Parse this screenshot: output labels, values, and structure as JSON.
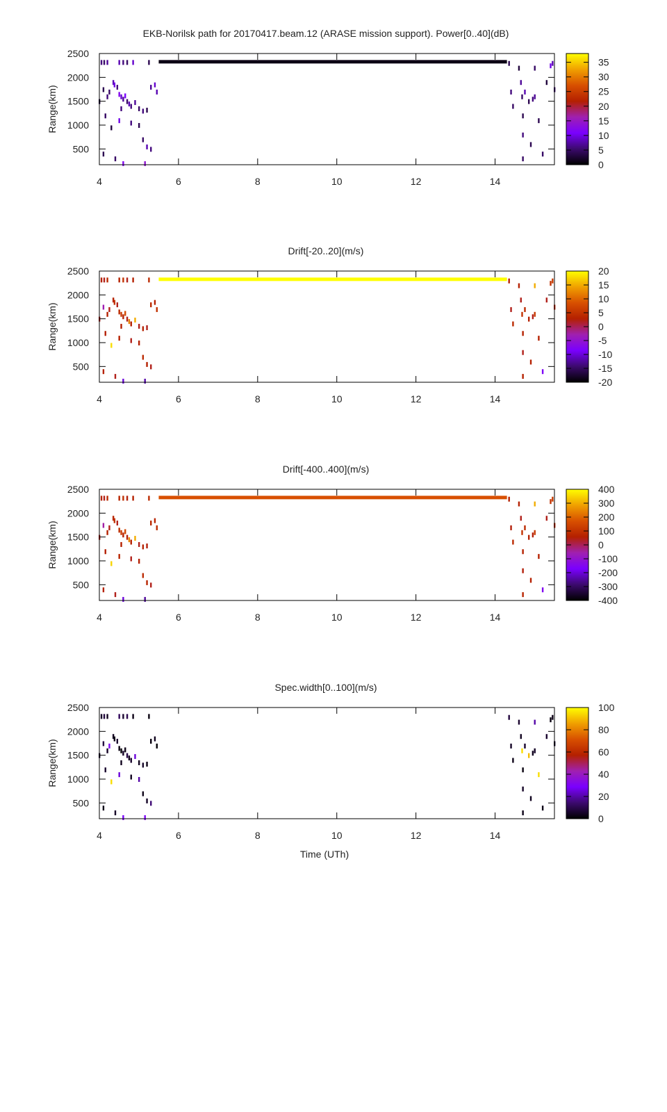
{
  "chart_data": {
    "type": "heatmap",
    "title": "EKB-Norilsk path for 20170417.beam.12 (ARASE mission support). Power[0..40](dB)",
    "xlabel": "Time (UTh)",
    "ylabel": "Range(km)",
    "xlim": [
      4,
      15.5
    ],
    "ylim": [
      170,
      2500
    ],
    "xticks": [
      4,
      6,
      8,
      10,
      12,
      14
    ],
    "yticks": [
      500,
      1000,
      1500,
      2000,
      2500
    ],
    "palette": [
      "#000000",
      "#3c0a6e",
      "#7a00ff",
      "#a020b0",
      "#b42000",
      "#d85000",
      "#f0a000",
      "#ffff00"
    ],
    "echo_columns": [
      "time_h",
      "range_km",
      "power_db",
      "drift_20",
      "drift_400",
      "spec_width"
    ],
    "panels": [
      {
        "title": "EKB-Norilsk path for 20170417.beam.12 (ARASE mission support). Power[0..40](dB)",
        "column": 2,
        "cbrange": [
          0,
          38
        ],
        "cbticks": [
          "0",
          "5",
          "10",
          "15",
          "20",
          "25",
          "30",
          "35"
        ],
        "cbtick_values": [
          0,
          5,
          10,
          15,
          20,
          25,
          30,
          35
        ],
        "band_value": 1
      },
      {
        "title": "Drift[-20..20](m/s)",
        "column": 3,
        "cbrange": [
          -20,
          20
        ],
        "cbticks": [
          "-20",
          "-15",
          "-10",
          "-5",
          "0",
          "5",
          "10",
          "15",
          "20"
        ],
        "cbtick_values": [
          -20,
          -15,
          -10,
          -5,
          0,
          5,
          10,
          15,
          20
        ],
        "band_value": 20
      },
      {
        "title": "Drift[-400..400](m/s)",
        "column": 4,
        "cbrange": [
          -400,
          400
        ],
        "cbticks": [
          "-400",
          "-300",
          "-200",
          "-100",
          "0",
          "100",
          "200",
          "300",
          "400"
        ],
        "cbtick_values": [
          -400,
          -300,
          -200,
          -100,
          0,
          100,
          200,
          300,
          400
        ],
        "band_value": 170
      },
      {
        "title": "Spec.width[0..100](m/s)",
        "column": 5,
        "cbrange": [
          0,
          100
        ],
        "cbticks": [
          "0",
          "20",
          "40",
          "60",
          "80",
          "100"
        ],
        "cbtick_values": [
          0,
          20,
          40,
          60,
          80,
          100
        ],
        "band_value": null
      }
    ],
    "band": {
      "t_start": 5.5,
      "t_end": 14.3,
      "range_km": 2320
    },
    "echoes": [
      [
        4.05,
        2320,
        6,
        3,
        60,
        5
      ],
      [
        4.12,
        2320,
        5,
        2,
        40,
        8
      ],
      [
        4.2,
        2320,
        7,
        4,
        80,
        4
      ],
      [
        4.5,
        2320,
        8,
        3,
        70,
        12
      ],
      [
        4.6,
        2320,
        6,
        5,
        90,
        6
      ],
      [
        4.7,
        2320,
        5,
        2,
        50,
        10
      ],
      [
        4.85,
        2320,
        9,
        3,
        60,
        3
      ],
      [
        5.25,
        2320,
        4,
        4,
        80,
        2
      ],
      [
        4.35,
        1900,
        8,
        3,
        70,
        4
      ],
      [
        4.38,
        1850,
        10,
        5,
        100,
        3
      ],
      [
        4.45,
        1800,
        6,
        2,
        40,
        6
      ],
      [
        4.5,
        1650,
        12,
        4,
        90,
        2
      ],
      [
        4.55,
        1600,
        9,
        6,
        120,
        1
      ],
      [
        4.6,
        1550,
        7,
        3,
        60,
        5
      ],
      [
        4.65,
        1620,
        11,
        8,
        150,
        3
      ],
      [
        4.7,
        1500,
        5,
        2,
        50,
        9
      ],
      [
        4.75,
        1450,
        8,
        12,
        250,
        4
      ],
      [
        4.8,
        1400,
        6,
        3,
        60,
        6
      ],
      [
        4.9,
        1480,
        7,
        15,
        300,
        25
      ],
      [
        5.0,
        1350,
        5,
        2,
        40,
        4
      ],
      [
        5.1,
        1300,
        6,
        3,
        60,
        5
      ],
      [
        5.2,
        1320,
        4,
        2,
        50,
        3
      ],
      [
        5.3,
        1800,
        7,
        4,
        80,
        2
      ],
      [
        5.4,
        1850,
        9,
        3,
        70,
        4
      ],
      [
        5.45,
        1700,
        8,
        5,
        90,
        1
      ],
      [
        4.25,
        1700,
        5,
        2,
        40,
        30
      ],
      [
        4.2,
        1600,
        6,
        3,
        60,
        5
      ],
      [
        4.1,
        1750,
        4,
        -3,
        -50,
        8
      ],
      [
        4.15,
        1200,
        5,
        3,
        60,
        6
      ],
      [
        4.3,
        950,
        3,
        18,
        350,
        95
      ],
      [
        4.5,
        1100,
        10,
        3,
        70,
        25
      ],
      [
        4.8,
        1050,
        6,
        2,
        40,
        4
      ],
      [
        5.0,
        1000,
        4,
        3,
        60,
        20
      ],
      [
        5.1,
        700,
        5,
        4,
        80,
        3
      ],
      [
        5.2,
        550,
        8,
        3,
        70,
        5
      ],
      [
        5.3,
        500,
        6,
        2,
        40,
        15
      ],
      [
        4.1,
        400,
        4,
        3,
        60,
        3
      ],
      [
        4.4,
        300,
        5,
        2,
        40,
        5
      ],
      [
        4.6,
        200,
        12,
        -10,
        -200,
        28
      ],
      [
        5.15,
        200,
        14,
        -12,
        -250,
        30
      ],
      [
        4.0,
        1500,
        3,
        2,
        40,
        6
      ],
      [
        4.55,
        1350,
        6,
        3,
        60,
        4
      ],
      [
        14.35,
        2300,
        4,
        3,
        60,
        8
      ],
      [
        14.4,
        1700,
        6,
        2,
        50,
        5
      ],
      [
        14.45,
        1400,
        5,
        4,
        80,
        3
      ],
      [
        14.6,
        2200,
        3,
        3,
        60,
        6
      ],
      [
        14.65,
        1900,
        7,
        2,
        40,
        4
      ],
      [
        14.68,
        1600,
        5,
        5,
        100,
        95
      ],
      [
        14.7,
        1200,
        4,
        3,
        60,
        2
      ],
      [
        14.7,
        800,
        6,
        2,
        50,
        5
      ],
      [
        14.7,
        300,
        5,
        3,
        70,
        3
      ],
      [
        14.75,
        1700,
        8,
        4,
        80,
        6
      ],
      [
        14.85,
        1500,
        4,
        3,
        60,
        90
      ],
      [
        14.95,
        1550,
        6,
        2,
        50,
        4
      ],
      [
        15.0,
        1600,
        7,
        6,
        120,
        5
      ],
      [
        15.0,
        2200,
        5,
        15,
        300,
        20
      ],
      [
        15.1,
        1100,
        4,
        3,
        60,
        95
      ],
      [
        15.3,
        1900,
        3,
        2,
        40,
        6
      ],
      [
        15.4,
        2250,
        10,
        5,
        100,
        2
      ],
      [
        15.45,
        2300,
        8,
        6,
        120,
        3
      ],
      [
        15.5,
        1750,
        5,
        4,
        80,
        5
      ],
      [
        14.9,
        600,
        4,
        3,
        60,
        4
      ],
      [
        15.2,
        400,
        5,
        -8,
        -150,
        3
      ]
    ]
  }
}
